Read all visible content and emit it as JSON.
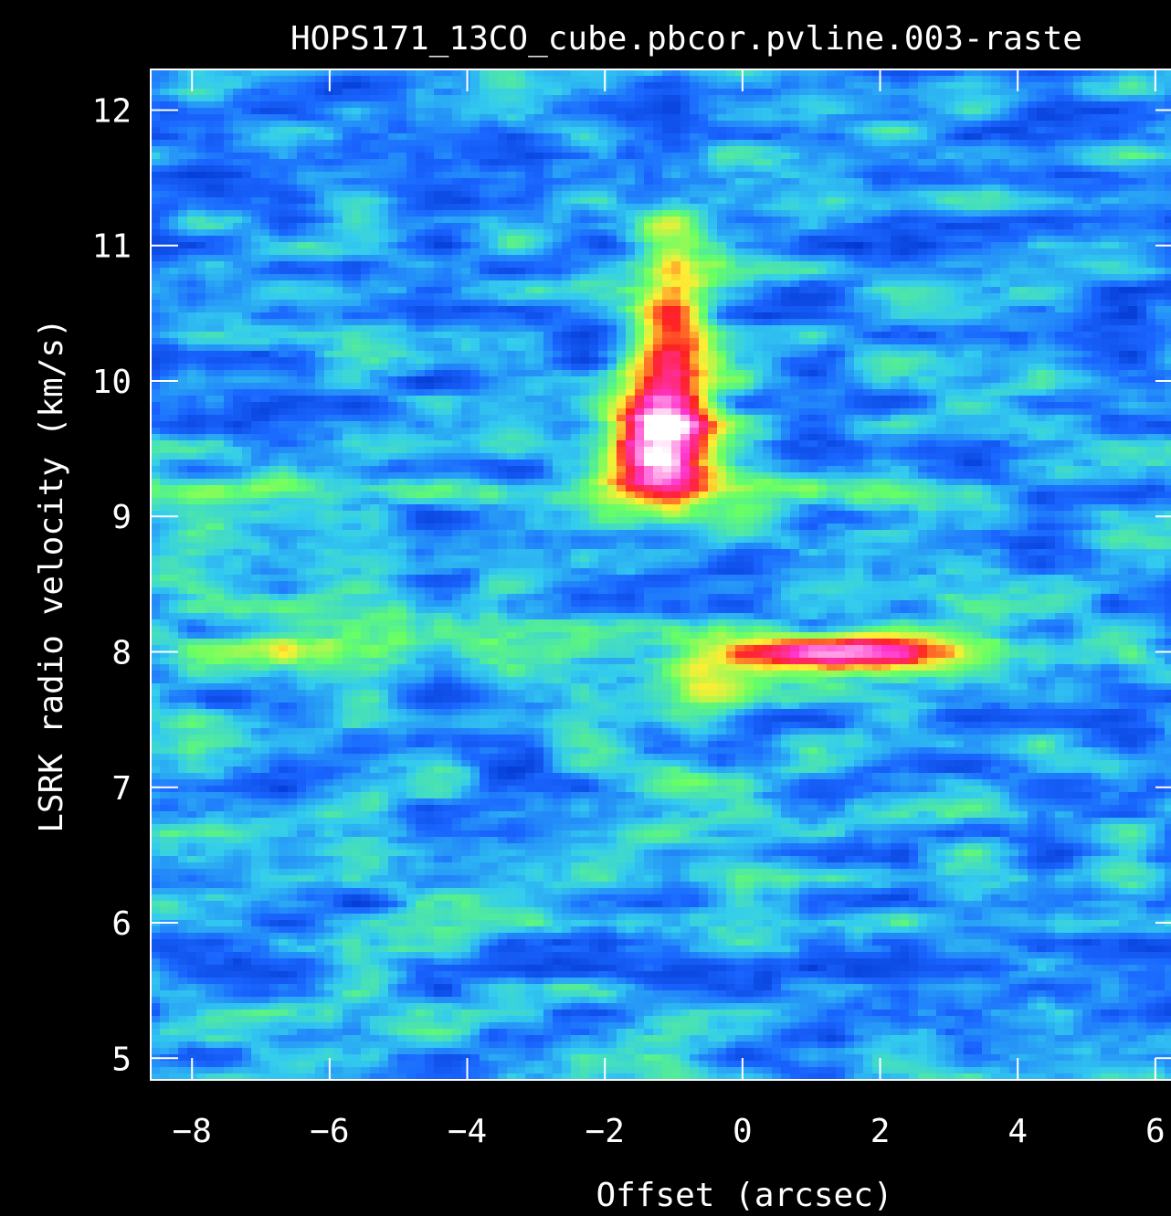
{
  "chart_data": {
    "type": "heatmap",
    "title": "HOPS171_13CO_cube.pbcor.pvline.003-raste",
    "xlabel": "Offset (arcsec)",
    "ylabel": "LSRK radio velocity  (km/s)",
    "xlim": [
      -8.6,
      6.4
    ],
    "ylim": [
      4.84,
      12.3
    ],
    "x_ticks": [
      -8,
      -6,
      -4,
      -2,
      0,
      2,
      4,
      6
    ],
    "x_tick_labels": [
      "−8",
      "−6",
      "−4",
      "−2",
      "0",
      "2",
      "4",
      "6"
    ],
    "y_ticks": [
      5,
      6,
      7,
      8,
      9,
      10,
      11,
      12
    ],
    "y_tick_labels": [
      "5",
      "6",
      "7",
      "8",
      "9",
      "10",
      "11",
      "12"
    ],
    "colormap": [
      "#0033cc",
      "#1a66ff",
      "#33ccee",
      "#66ff66",
      "#ffee33",
      "#ff2222",
      "#ff33cc",
      "#ffffff"
    ],
    "features": [
      {
        "offset": -1.2,
        "velocity": 9.5,
        "peak": 1.0
      },
      {
        "offset": 1.5,
        "velocity": 8.0,
        "peak": 0.85
      },
      {
        "offset": 0.5,
        "velocity": 9.2,
        "peak": 0.45
      },
      {
        "offset": -5.5,
        "velocity": 8.1,
        "peak": 0.4
      },
      {
        "offset": -7.0,
        "velocity": 9.2,
        "peak": 0.35
      },
      {
        "offset": -0.5,
        "velocity": 7.05,
        "peak": 0.4
      }
    ]
  }
}
